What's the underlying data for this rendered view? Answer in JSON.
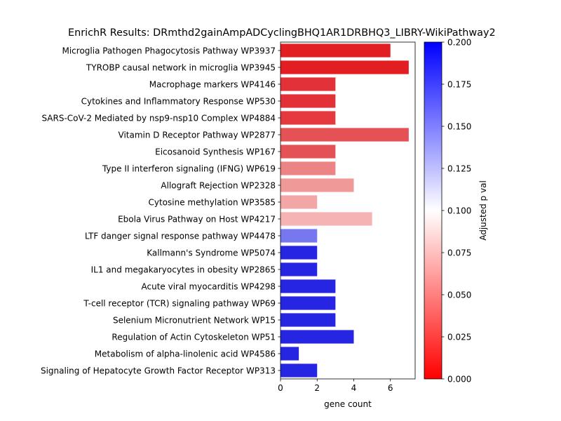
{
  "chart_data": {
    "type": "bar",
    "orientation": "horizontal",
    "title": "EnrichR Results: DRmthd2gainAmpADCyclingBHQ1AR1DRBHQ3_LIBRY-WikiPathway2",
    "xlabel": "gene count",
    "ylabel": "",
    "xlim": [
      0,
      7.35
    ],
    "x_ticks": [
      "0",
      "2",
      "4",
      "6"
    ],
    "grid": false,
    "categories": [
      "Microglia Pathogen Phagocytosis Pathway WP3937",
      "TYROBP causal network in microglia WP3945",
      "Macrophage markers WP4146",
      "Cytokines and Inflammatory Response WP530",
      "SARS-CoV-2 Mediated by nsp9-nsp10 Complex WP4884",
      "Vitamin D Receptor Pathway WP2877",
      "Eicosanoid Synthesis WP167",
      "Type II interferon signaling (IFNG) WP619",
      "Allograft Rejection WP2328",
      "Cytosine methylation WP3585",
      "Ebola Virus Pathway on Host WP4217",
      "LTF danger signal response pathway WP4478",
      "Kallmann's Syndrome WP5074",
      "IL1 and megakaryocytes in obesity WP2865",
      "Acute viral myocarditis WP4298",
      "T-cell receptor (TCR) signaling pathway WP69",
      "Selenium Micronutrient Network WP15",
      "Regulation of Actin Cytoskeleton WP51",
      "Metabolism of alpha-linolenic acid WP4586",
      "Signaling of Hepatocyte Growth Factor Receptor WP313"
    ],
    "values": [
      6,
      7,
      3,
      3,
      3,
      7,
      3,
      3,
      4,
      2,
      5,
      2,
      2,
      2,
      3,
      3,
      3,
      4,
      1,
      2
    ],
    "adjusted_p": [
      0.006,
      0.008,
      0.012,
      0.013,
      0.014,
      0.021,
      0.022,
      0.035,
      0.042,
      0.045,
      0.055,
      0.15,
      0.195,
      0.195,
      0.195,
      0.195,
      0.195,
      0.195,
      0.195,
      0.195
    ],
    "bar_colors": [
      "#e31e22",
      "#e31e22",
      "#e3313a",
      "#e3313a",
      "#e3393f",
      "#e55255",
      "#e55255",
      "#ec8485",
      "#ef9a99",
      "#f2a6a5",
      "#f5b3b3",
      "#7777ef",
      "#2525e2",
      "#2525e2",
      "#2525e2",
      "#2525e2",
      "#2525e2",
      "#2525e2",
      "#2525e2",
      "#2525e2"
    ],
    "colorbar": {
      "label": "Adjusted p val",
      "min": 0.0,
      "max": 0.2,
      "ticks": [
        "0.000",
        "0.025",
        "0.050",
        "0.075",
        "0.100",
        "0.125",
        "0.150",
        "0.175",
        "0.200"
      ],
      "colormap": [
        "#ff0000",
        "#ffffff",
        "#0000ff"
      ]
    }
  }
}
